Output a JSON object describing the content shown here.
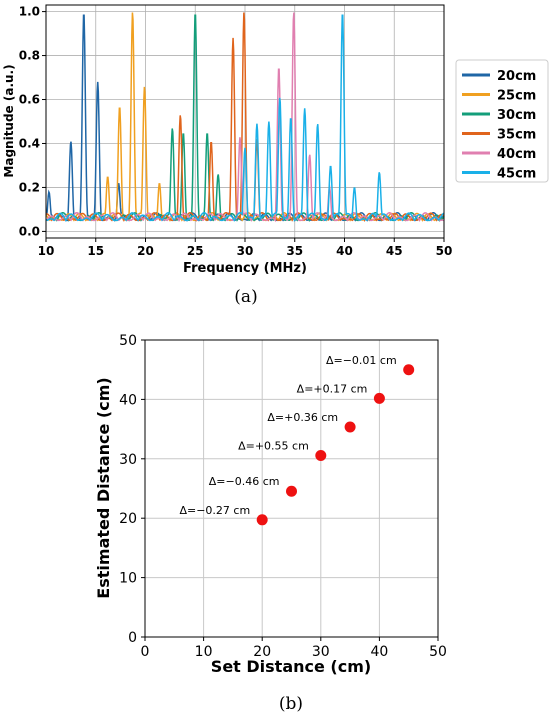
{
  "chart_data": [
    {
      "type": "line",
      "caption": "(a)",
      "xlabel": "Frequency (MHz)",
      "ylabel": "Magnitude (a.u.)",
      "xlim": [
        10,
        50
      ],
      "ylim": [
        -0.03,
        1.03
      ],
      "xticks": [
        "10",
        "15",
        "20",
        "25",
        "30",
        "35",
        "40",
        "45",
        "50"
      ],
      "yticks": [
        "0.0",
        "0.2",
        "0.4",
        "0.6",
        "0.8",
        "1.0"
      ],
      "grid": true,
      "legend_position": "outside-right",
      "series": [
        {
          "name": "20cm",
          "color": "#1f66a6",
          "peaks": [
            [
              12.5,
              0.41
            ],
            [
              13.8,
              1.0
            ],
            [
              15.2,
              0.68
            ],
            [
              17.3,
              0.22
            ],
            [
              10.3,
              0.18
            ]
          ]
        },
        {
          "name": "25cm",
          "color": "#f0a020",
          "peaks": [
            [
              17.4,
              0.57
            ],
            [
              18.7,
              1.0
            ],
            [
              19.9,
              0.66
            ],
            [
              21.4,
              0.22
            ],
            [
              16.2,
              0.25
            ]
          ]
        },
        {
          "name": "30cm",
          "color": "#139e7a",
          "peaks": [
            [
              22.7,
              0.47
            ],
            [
              23.8,
              0.45
            ],
            [
              25.0,
              1.0
            ],
            [
              26.2,
              0.45
            ],
            [
              27.3,
              0.26
            ]
          ]
        },
        {
          "name": "35cm",
          "color": "#e0641c",
          "peaks": [
            [
              23.5,
              0.53
            ],
            [
              26.6,
              0.41
            ],
            [
              28.8,
              0.88
            ],
            [
              29.9,
              1.0
            ],
            [
              31.2,
              0.42
            ]
          ]
        },
        {
          "name": "40cm",
          "color": "#e07fb0",
          "peaks": [
            [
              29.5,
              0.43
            ],
            [
              33.4,
              0.75
            ],
            [
              34.9,
              1.0
            ],
            [
              36.5,
              0.35
            ],
            [
              38.5,
              0.2
            ]
          ]
        },
        {
          "name": "45cm",
          "color": "#1ab0e8",
          "peaks": [
            [
              30.0,
              0.38
            ],
            [
              31.2,
              0.49
            ],
            [
              32.4,
              0.5
            ],
            [
              33.5,
              0.61
            ],
            [
              34.6,
              0.52
            ],
            [
              36.0,
              0.56
            ],
            [
              37.3,
              0.49
            ],
            [
              38.6,
              0.3
            ],
            [
              39.8,
              1.0
            ],
            [
              41.0,
              0.2
            ],
            [
              43.5,
              0.27
            ]
          ]
        }
      ]
    },
    {
      "type": "scatter",
      "caption": "(b)",
      "xlabel": "Set Distance (cm)",
      "ylabel": "Estimated Distance (cm)",
      "xlim": [
        0,
        50
      ],
      "ylim": [
        0,
        50
      ],
      "xticks": [
        "0",
        "10",
        "20",
        "30",
        "40",
        "50"
      ],
      "yticks": [
        "0",
        "10",
        "20",
        "30",
        "40",
        "50"
      ],
      "grid": true,
      "marker_color": "#ee1111",
      "points": [
        {
          "x": 20,
          "y": 19.73,
          "label": "Δ=−0.27 cm"
        },
        {
          "x": 25,
          "y": 24.54,
          "label": "Δ=−0.46 cm"
        },
        {
          "x": 30,
          "y": 30.55,
          "label": "Δ=+0.55 cm"
        },
        {
          "x": 35,
          "y": 35.36,
          "label": "Δ=+0.36 cm"
        },
        {
          "x": 40,
          "y": 40.17,
          "label": "Δ=+0.17 cm"
        },
        {
          "x": 45,
          "y": 44.99,
          "label": "Δ=−0.01 cm"
        }
      ]
    }
  ]
}
